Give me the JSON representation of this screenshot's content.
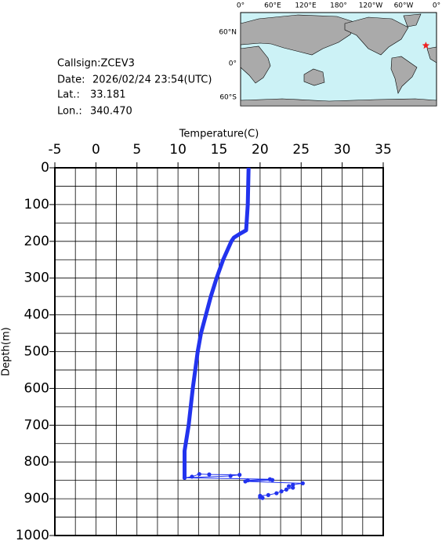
{
  "info": {
    "callsign": "Callsign:ZCEV3",
    "date_label": "Date:",
    "date": "2026/02/24 23:54(UTC)",
    "lat_label": "Lat.:",
    "lat": "33.181",
    "lon_label": "Lon.:",
    "lon": "340.470"
  },
  "map": {
    "lon_labels": [
      "0°",
      "60°E",
      "120°E",
      "180°",
      "120°W",
      "60°W",
      "0°"
    ],
    "lat_labels": [
      "60°N",
      "0°",
      "60°S"
    ],
    "marker_color": "#ee2222"
  },
  "chart_data": {
    "type": "line",
    "x_label": "Temperature(C)",
    "y_label": "Depth(m)",
    "xlim": [
      -5,
      35
    ],
    "xticks": [
      -5,
      0,
      5,
      10,
      15,
      20,
      25,
      30,
      35
    ],
    "ylim": [
      0,
      1000
    ],
    "yticks": [
      0,
      100,
      200,
      300,
      400,
      500,
      600,
      700,
      800,
      900,
      1000
    ],
    "y_inverted": true,
    "grid": true,
    "x_grid_step": 2.5,
    "y_grid_step": 50,
    "series": [
      {
        "color": "#2233ee",
        "line_width": 5,
        "markers": false,
        "x": [
          18.6,
          18.5,
          18.3,
          17.5,
          16.8,
          16.5,
          15.5,
          14.7,
          14.0,
          13.4,
          12.8,
          12.4,
          11.8,
          11.3,
          10.8,
          10.8
        ],
        "depth": [
          0,
          100,
          170,
          180,
          190,
          200,
          250,
          300,
          350,
          400,
          450,
          500,
          600,
          700,
          770,
          840
        ]
      },
      {
        "color": "#2233ee",
        "line_width": 1,
        "markers": true,
        "x": [
          10.8,
          11.7,
          12.6,
          13.8,
          17.5,
          16.4,
          10.8,
          21.2,
          18.5,
          21.5,
          18.2,
          25.2,
          24.0,
          23.5,
          24.0,
          23.2,
          22.6,
          22.0,
          21.0,
          20.0,
          20.0,
          20.3
        ],
        "depth": [
          843,
          840,
          833,
          834,
          835,
          838,
          843,
          847,
          850,
          849,
          853,
          858,
          862,
          866,
          870,
          875,
          880,
          885,
          890,
          892,
          896,
          898
        ]
      }
    ]
  }
}
